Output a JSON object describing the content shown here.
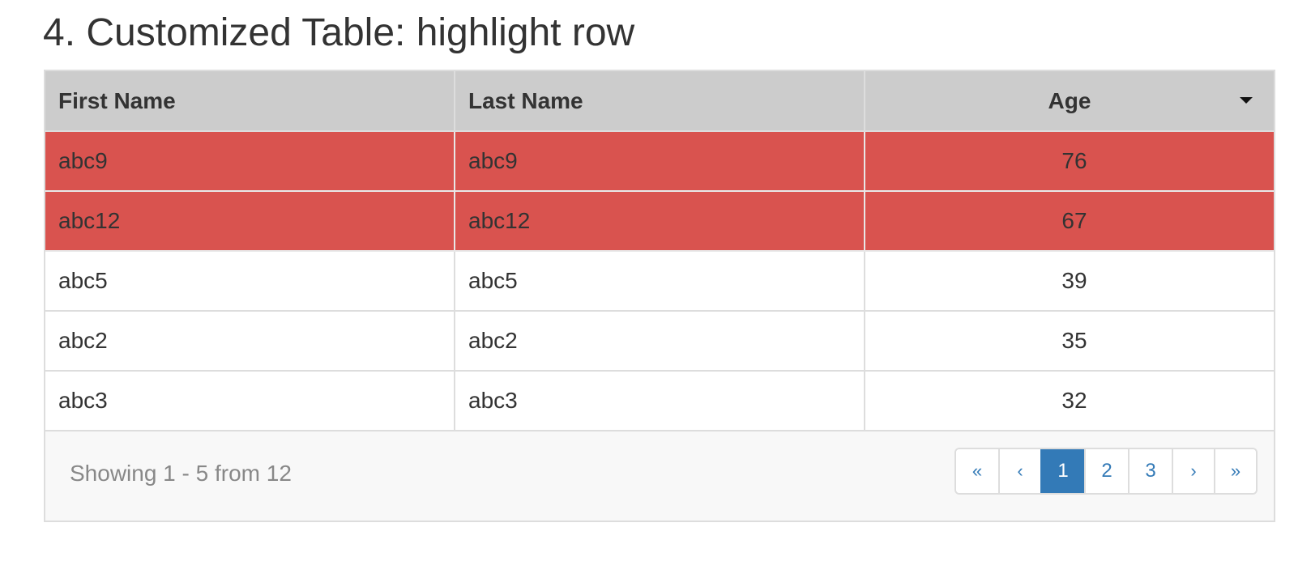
{
  "page": {
    "title": "4. Customized Table: highlight row"
  },
  "table": {
    "columns": [
      {
        "label": "First Name"
      },
      {
        "label": "Last Name"
      },
      {
        "label": "Age",
        "sort": "descending"
      }
    ],
    "rows": [
      {
        "first": "abc9",
        "last": "abc9",
        "age": "76",
        "highlighted": true
      },
      {
        "first": "abc12",
        "last": "abc12",
        "age": "67",
        "highlighted": true
      },
      {
        "first": "abc5",
        "last": "abc5",
        "age": "39",
        "highlighted": false
      },
      {
        "first": "abc2",
        "last": "abc2",
        "age": "35",
        "highlighted": false
      },
      {
        "first": "abc3",
        "last": "abc3",
        "age": "32",
        "highlighted": false
      }
    ],
    "highlight_color": "#d9534f",
    "header_color": "#cccccc"
  },
  "footer": {
    "status": "Showing 1 - 5 from 12"
  },
  "pagination": {
    "first_label": "«",
    "prev_label": "‹",
    "pages": [
      "1",
      "2",
      "3"
    ],
    "current_page": "1",
    "next_label": "›",
    "last_label": "»",
    "accent_color": "#337ab7"
  }
}
